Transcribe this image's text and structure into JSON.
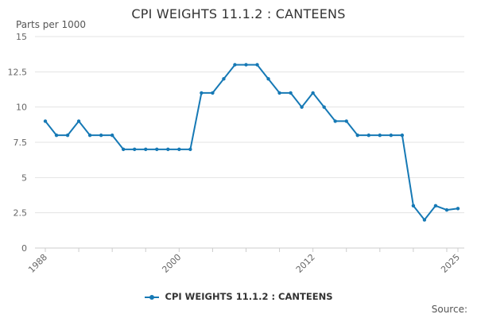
{
  "chart_data": {
    "type": "line",
    "title": "CPI WEIGHTS 11.1.2 : CANTEENS",
    "ylabel": "Parts per 1000",
    "xlabel": "",
    "ylim": [
      0,
      15
    ],
    "xlim": [
      1988,
      2025
    ],
    "grid": true,
    "legend_position": "bottom",
    "y_ticks": [
      "0",
      "2.5",
      "5",
      "7.5",
      "10",
      "12.5",
      "15"
    ],
    "x_ticks": [
      "1988",
      "2000",
      "2012",
      "2025"
    ],
    "series": [
      {
        "name": "CPI WEIGHTS 11.1.2 : CANTEENS",
        "color": "#1679b5",
        "x": [
          1988,
          1989,
          1990,
          1991,
          1992,
          1993,
          1994,
          1995,
          1996,
          1997,
          1998,
          1999,
          2000,
          2001,
          2002,
          2003,
          2004,
          2005,
          2006,
          2007,
          2008,
          2009,
          2010,
          2011,
          2012,
          2013,
          2014,
          2015,
          2016,
          2017,
          2018,
          2019,
          2020,
          2021,
          2022,
          2023,
          2024,
          2025
        ],
        "values": [
          9,
          8,
          8,
          9,
          8,
          8,
          8,
          7,
          7,
          7,
          7,
          7,
          7,
          7,
          11,
          11,
          12,
          13,
          13,
          13,
          12,
          11,
          11,
          10,
          11,
          10,
          9,
          9,
          8,
          8,
          8,
          8,
          8,
          3,
          2,
          3,
          2.7,
          2.8
        ]
      }
    ]
  },
  "footer": {
    "source_label": "Source:"
  }
}
